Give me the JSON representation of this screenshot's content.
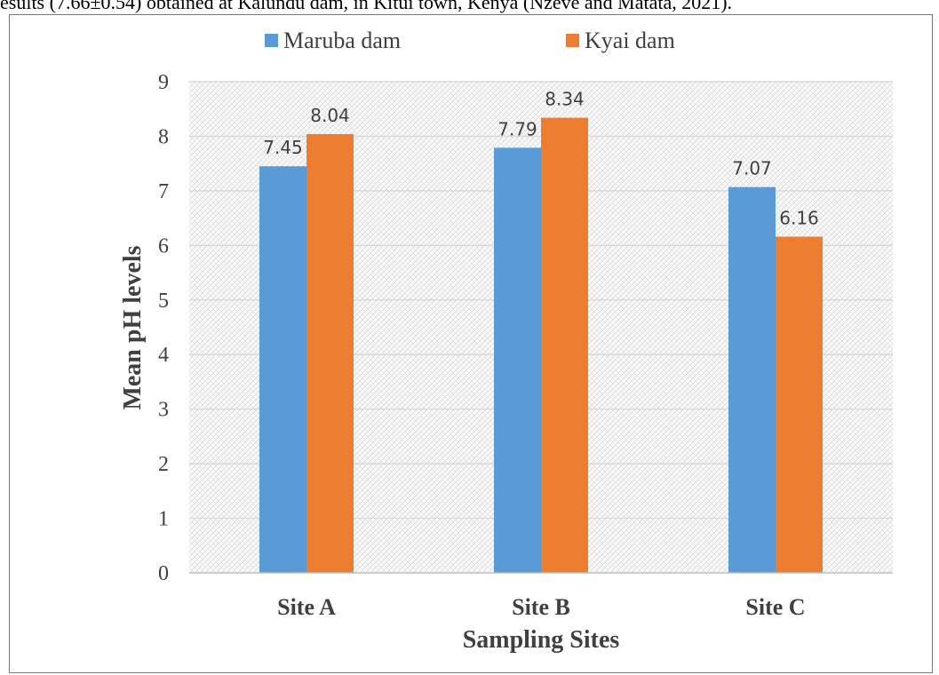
{
  "caption": "esults (7.66±0.54) obtained at Kalundu dam, in Kitui town, Kenya (Nzeve and Matata, 2021).",
  "chart_data": {
    "type": "bar",
    "categories": [
      "Site A",
      "Site B",
      "Site C"
    ],
    "series": [
      {
        "name": "Maruba dam",
        "values": [
          7.45,
          7.79,
          7.07
        ],
        "color": "#5b9bd5"
      },
      {
        "name": "Kyai dam",
        "values": [
          8.04,
          8.34,
          6.16
        ],
        "color": "#ed7d31"
      }
    ],
    "data_labels": [
      [
        "7.45",
        "7.79",
        "7.07"
      ],
      [
        "8.04",
        "8.34",
        "6.16"
      ]
    ],
    "xlabel": "Sampling Sites",
    "ylabel": "Mean pH levels",
    "ylim": [
      0,
      9
    ],
    "yticks": [
      "0",
      "1",
      "2",
      "3",
      "4",
      "5",
      "6",
      "7",
      "8",
      "9"
    ],
    "grid": true,
    "legend_position": "top"
  }
}
